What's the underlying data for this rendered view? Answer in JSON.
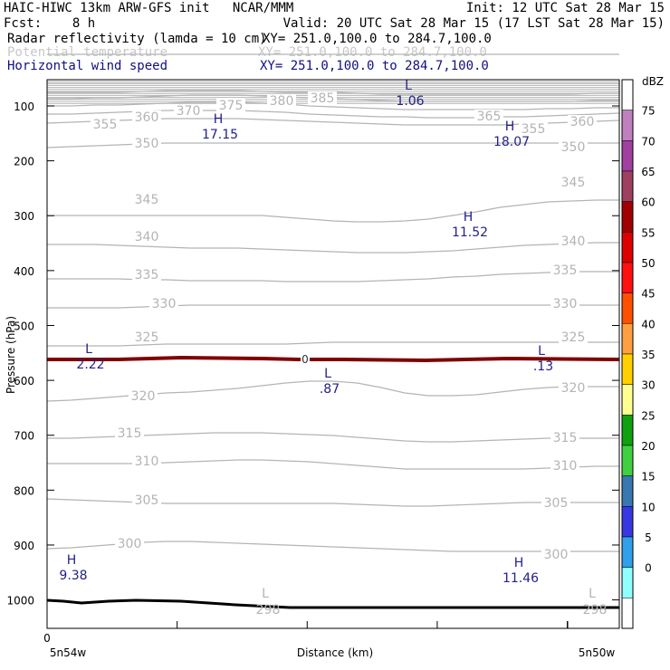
{
  "header": {
    "line1_left": "HAIC-HIWC 13km ARW-GFS init   NCAR/MMM",
    "line1_right": "Init: 12 UTC Sat 28 Mar 15",
    "line2_left": "Fcst:    8 h",
    "line2_right": "Valid: 20 UTC Sat 28 Mar 15 (17 LST Sat 28 Mar 15)",
    "field1_name": "Radar reflectivity (lamda = 10 cm)",
    "field1_xy": "XY= 251.0,100.0 to 284.7,100.0",
    "field2_name": "Potential temperature",
    "field2_xy": "XY= 251.0,100.0 to 284.7,100.0",
    "field3_name": "Horizontal wind speed",
    "field3_xy": "XY= 251.0,100.0 to 284.7,100.0"
  },
  "colors": {
    "field1": "#000000",
    "field2": "#c8c8c8",
    "field3": "#101080",
    "theta": "#b4b4b4",
    "wind": "#222288",
    "freezing": "#800000",
    "terrain": "#000000"
  },
  "chart_data": {
    "type": "line",
    "title": "Radar reflectivity (lamda = 10 cm)",
    "xlabel": "Distance (km)",
    "ylabel": "Pressure (hPa)",
    "y_ticks": [
      "100",
      "200",
      "300",
      "400",
      "500",
      "600",
      "700",
      "800",
      "900",
      "1000"
    ],
    "x_tick_label": "0",
    "x_left_label": "5n54w",
    "x_right_label": "5n50w",
    "ylim": [
      1050,
      50
    ],
    "colorbar": {
      "unit": "dBZ",
      "levels": [
        "75",
        "70",
        "65",
        "60",
        "55",
        "50",
        "45",
        "40",
        "35",
        "30",
        "25",
        "20",
        "15",
        "10",
        "5",
        "0"
      ],
      "colors": [
        "#ffffff",
        "#c080c0",
        "#a040a0",
        "#a04060",
        "#a00000",
        "#dd0000",
        "#ff1010",
        "#ff5000",
        "#ffa040",
        "#ffd000",
        "#ffff90",
        "#10a010",
        "#40d040",
        "#3878b0",
        "#3838e0",
        "#30a0e8",
        "#90ffff",
        "#ffffff"
      ]
    },
    "theta_contours": [
      {
        "value": 385,
        "label": "385",
        "x": [
          0,
          24
        ],
        "p": [
          60,
          60,
          60,
          60,
          60,
          60,
          60,
          60,
          60,
          60,
          60,
          60,
          60,
          60,
          60,
          60,
          60,
          60,
          60,
          60,
          60,
          60,
          60,
          60,
          60
        ]
      },
      {
        "value": 380,
        "label": "380",
        "p": [
          92,
          92,
          92,
          92,
          92,
          92,
          92,
          92,
          92,
          92,
          92,
          92,
          92,
          92,
          92,
          92,
          92,
          92,
          92,
          92,
          92,
          92,
          92,
          92,
          92
        ]
      },
      {
        "value": 375,
        "label": "375",
        "p": [
          102,
          102,
          102,
          102,
          101,
          100,
          100,
          100,
          100,
          101,
          102,
          102,
          102,
          103,
          104,
          104,
          104,
          104,
          104,
          104,
          104,
          104,
          104,
          103,
          103
        ]
      },
      {
        "value": 370,
        "label": "370",
        "p": [
          109,
          109,
          108,
          108,
          107,
          106,
          105,
          105,
          105,
          106,
          107,
          108,
          109,
          110,
          111,
          112,
          112,
          112,
          112,
          112,
          112,
          112,
          112,
          111,
          111
        ]
      },
      {
        "value": 365,
        "label": "365",
        "p": [
          117,
          117,
          116,
          116,
          115,
          114,
          113,
          113,
          113,
          114,
          115,
          117,
          118,
          119,
          120,
          121,
          121,
          121,
          121,
          121,
          121,
          120,
          120,
          119,
          119
        ]
      },
      {
        "value": 360,
        "label": "360",
        "p": [
          126,
          126,
          125,
          124,
          123,
          122,
          122,
          122,
          122,
          123,
          124,
          126,
          127,
          128,
          129,
          129,
          130,
          130,
          130,
          129,
          129,
          128,
          127,
          126,
          125
        ]
      },
      {
        "value": 355,
        "label": "355",
        "p": [
          136,
          135,
          134,
          133,
          132,
          131,
          131,
          131,
          131,
          132,
          133,
          134,
          135,
          136,
          137,
          138,
          138,
          138,
          138,
          138,
          137,
          136,
          135,
          134,
          133
        ]
      },
      {
        "value": 350,
        "label": "350",
        "p": [
          163,
          162,
          161,
          160,
          159,
          158,
          158,
          158,
          158,
          158,
          158,
          158,
          158,
          158,
          158,
          158,
          158,
          158,
          158,
          158,
          158,
          158,
          158,
          158,
          158
        ]
      },
      {
        "value": 345,
        "label": "345",
        "p": [
          238,
          238,
          238,
          238,
          238,
          238,
          238,
          238,
          238,
          238,
          240,
          242,
          244,
          245,
          245,
          244,
          242,
          238,
          234,
          229,
          226,
          223,
          222,
          221,
          221
        ]
      },
      {
        "value": 340,
        "label": "340",
        "p": [
          270,
          270,
          270,
          271,
          272,
          273,
          274,
          274,
          274,
          275,
          276,
          277,
          278,
          279,
          279,
          279,
          278,
          277,
          275,
          273,
          271,
          270,
          269,
          268,
          268
        ]
      },
      {
        "value": 335,
        "label": "335",
        "p": [
          308,
          308,
          308,
          308,
          309,
          309,
          310,
          310,
          310,
          310,
          311,
          311,
          311,
          311,
          310,
          309,
          308,
          306,
          305,
          303,
          302,
          301,
          300,
          300,
          300
        ]
      },
      {
        "value": 330,
        "label": "330",
        "p": [
          340,
          340,
          340,
          340,
          339,
          338,
          337,
          337,
          337,
          337,
          337,
          337,
          337,
          337,
          337,
          337,
          337,
          337,
          337,
          337,
          337,
          337,
          337,
          337,
          337
        ]
      },
      {
        "value": 325,
        "label": "325",
        "p": [
          382,
          382,
          382,
          382,
          381,
          380,
          380,
          380,
          380,
          380,
          380,
          379,
          378,
          378,
          378,
          378,
          378,
          378,
          378,
          378,
          378,
          378,
          378,
          378,
          378
        ]
      },
      {
        "value": 320,
        "label": "320",
        "p": [
          443,
          442,
          440,
          438,
          436,
          434,
          433,
          431,
          429,
          426,
          423,
          421,
          421,
          423,
          428,
          434,
          437,
          437,
          436,
          433,
          430,
          428,
          427,
          427,
          427
        ]
      },
      {
        "value": 315,
        "label": "315",
        "p": [
          484,
          484,
          483,
          482,
          481,
          480,
          479,
          478,
          478,
          478,
          479,
          480,
          481,
          483,
          485,
          487,
          488,
          488,
          487,
          486,
          485,
          484,
          484,
          484,
          484
        ]
      },
      {
        "value": 310,
        "label": "310",
        "p": [
          512,
          512,
          512,
          512,
          512,
          511,
          510,
          509,
          508,
          508,
          509,
          510,
          512,
          514,
          516,
          518,
          518,
          518,
          518,
          518,
          518,
          517,
          516,
          515,
          515
        ]
      },
      {
        "value": 305,
        "label": "305",
        "p": [
          551,
          552,
          553,
          554,
          555,
          556,
          556,
          556,
          556,
          556,
          556,
          556,
          556,
          557,
          558,
          559,
          559,
          558,
          557,
          556,
          555,
          555,
          555,
          555,
          555
        ]
      },
      {
        "value": 300,
        "label": "300",
        "p": [
          606,
          605,
          603,
          601,
          599,
          598,
          598,
          599,
          600,
          601,
          602,
          603,
          604,
          605,
          606,
          607,
          608,
          609,
          609,
          609,
          609,
          609,
          609,
          609,
          609
        ]
      }
    ],
    "freezing_level_label": "0",
    "wind_extrema": [
      {
        "type": "L",
        "value": "1.06"
      },
      {
        "type": "H",
        "value": "17.15"
      },
      {
        "type": "H",
        "value": "18.07"
      },
      {
        "type": "H",
        "value": "11.52"
      },
      {
        "type": "L",
        "value": "2.22"
      },
      {
        "type": "L",
        "value": ".13"
      },
      {
        "type": "L",
        "value": ".87"
      },
      {
        "type": "H",
        "value": "9.38"
      },
      {
        "type": "H",
        "value": "11.46"
      }
    ],
    "theta_extrema": [
      {
        "type": "L",
        "value": "298"
      },
      {
        "type": "L",
        "value": "298"
      }
    ]
  }
}
